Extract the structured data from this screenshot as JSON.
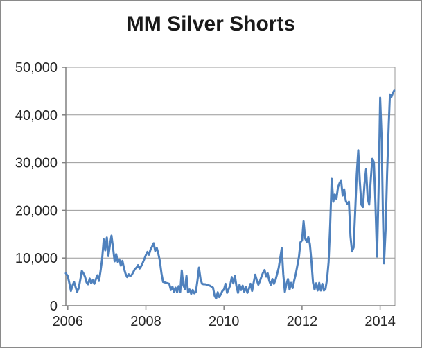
{
  "chart_data": {
    "type": "line",
    "title": "MM Silver Shorts",
    "xlabel": "",
    "ylabel": "",
    "xlim": [
      2005.95,
      2014.38
    ],
    "ylim": [
      0,
      50000
    ],
    "x_ticks": [
      2006,
      2008,
      2010,
      2012,
      2014
    ],
    "x_tick_labels": [
      "2006",
      "2008",
      "2010",
      "2012",
      "2014"
    ],
    "y_ticks": [
      0,
      10000,
      20000,
      30000,
      40000,
      50000
    ],
    "y_tick_labels": [
      "0",
      "10,000",
      "20,000",
      "30,000",
      "40,000",
      "50,000"
    ],
    "grid": "horizontal",
    "legend": "none",
    "colors": {
      "line": "#4F81BD",
      "gridline": "#999999",
      "axis": "#808080",
      "label": "#262626",
      "title": "#1a1a1a",
      "border": "#8a8a8a",
      "background": "#ffffff"
    },
    "series": [
      {
        "name": "MM Silver Shorts",
        "points": [
          [
            2005.95,
            6800
          ],
          [
            2006.0,
            6200
          ],
          [
            2006.04,
            4700
          ],
          [
            2006.08,
            3100
          ],
          [
            2006.12,
            4200
          ],
          [
            2006.16,
            5000
          ],
          [
            2006.2,
            3900
          ],
          [
            2006.24,
            2900
          ],
          [
            2006.28,
            3700
          ],
          [
            2006.32,
            5400
          ],
          [
            2006.36,
            7300
          ],
          [
            2006.4,
            6800
          ],
          [
            2006.44,
            6100
          ],
          [
            2006.48,
            4900
          ],
          [
            2006.52,
            4500
          ],
          [
            2006.56,
            5700
          ],
          [
            2006.6,
            4700
          ],
          [
            2006.64,
            5400
          ],
          [
            2006.68,
            4600
          ],
          [
            2006.72,
            5600
          ],
          [
            2006.76,
            6400
          ],
          [
            2006.8,
            5200
          ],
          [
            2006.84,
            7300
          ],
          [
            2006.88,
            9800
          ],
          [
            2006.92,
            13900
          ],
          [
            2006.96,
            11600
          ],
          [
            2007.0,
            14300
          ],
          [
            2007.04,
            10400
          ],
          [
            2007.08,
            12800
          ],
          [
            2007.12,
            14700
          ],
          [
            2007.16,
            12100
          ],
          [
            2007.2,
            9300
          ],
          [
            2007.24,
            10800
          ],
          [
            2007.28,
            9200
          ],
          [
            2007.32,
            9700
          ],
          [
            2007.36,
            8400
          ],
          [
            2007.4,
            9400
          ],
          [
            2007.44,
            7800
          ],
          [
            2007.48,
            6700
          ],
          [
            2007.52,
            6000
          ],
          [
            2007.56,
            6600
          ],
          [
            2007.6,
            6200
          ],
          [
            2007.64,
            6500
          ],
          [
            2007.68,
            7100
          ],
          [
            2007.72,
            7700
          ],
          [
            2007.76,
            8000
          ],
          [
            2007.8,
            8500
          ],
          [
            2007.84,
            7800
          ],
          [
            2007.88,
            8300
          ],
          [
            2007.92,
            9000
          ],
          [
            2007.96,
            9800
          ],
          [
            2008.0,
            10600
          ],
          [
            2008.04,
            11300
          ],
          [
            2008.08,
            10700
          ],
          [
            2008.12,
            11800
          ],
          [
            2008.16,
            12400
          ],
          [
            2008.2,
            13100
          ],
          [
            2008.24,
            11500
          ],
          [
            2008.28,
            12100
          ],
          [
            2008.32,
            10900
          ],
          [
            2008.36,
            9300
          ],
          [
            2008.4,
            6800
          ],
          [
            2008.44,
            5000
          ],
          [
            2008.48,
            4900
          ],
          [
            2008.52,
            4800
          ],
          [
            2008.56,
            4700
          ],
          [
            2008.6,
            4600
          ],
          [
            2008.64,
            3300
          ],
          [
            2008.68,
            4000
          ],
          [
            2008.72,
            2900
          ],
          [
            2008.76,
            3800
          ],
          [
            2008.8,
            2800
          ],
          [
            2008.84,
            4100
          ],
          [
            2008.88,
            2900
          ],
          [
            2008.92,
            7400
          ],
          [
            2008.96,
            4300
          ],
          [
            2009.0,
            3500
          ],
          [
            2009.04,
            6300
          ],
          [
            2009.08,
            2800
          ],
          [
            2009.12,
            3400
          ],
          [
            2009.16,
            2500
          ],
          [
            2009.2,
            3300
          ],
          [
            2009.24,
            2600
          ],
          [
            2009.28,
            2900
          ],
          [
            2009.32,
            5200
          ],
          [
            2009.36,
            8000
          ],
          [
            2009.4,
            5600
          ],
          [
            2009.44,
            4600
          ],
          [
            2009.48,
            4500
          ],
          [
            2009.52,
            4500
          ],
          [
            2009.56,
            4400
          ],
          [
            2009.6,
            4300
          ],
          [
            2009.64,
            4200
          ],
          [
            2009.68,
            4000
          ],
          [
            2009.72,
            3800
          ],
          [
            2009.76,
            2100
          ],
          [
            2009.8,
            1500
          ],
          [
            2009.84,
            2800
          ],
          [
            2009.88,
            1800
          ],
          [
            2009.92,
            2400
          ],
          [
            2009.96,
            3100
          ],
          [
            2010.0,
            3400
          ],
          [
            2010.04,
            4600
          ],
          [
            2010.08,
            2700
          ],
          [
            2010.12,
            3500
          ],
          [
            2010.16,
            4300
          ],
          [
            2010.2,
            6000
          ],
          [
            2010.24,
            4700
          ],
          [
            2010.28,
            6300
          ],
          [
            2010.32,
            4100
          ],
          [
            2010.36,
            2700
          ],
          [
            2010.4,
            4400
          ],
          [
            2010.44,
            3300
          ],
          [
            2010.48,
            4200
          ],
          [
            2010.52,
            2900
          ],
          [
            2010.56,
            3900
          ],
          [
            2010.6,
            2700
          ],
          [
            2010.64,
            3600
          ],
          [
            2010.68,
            4600
          ],
          [
            2010.72,
            3100
          ],
          [
            2010.76,
            4800
          ],
          [
            2010.8,
            6500
          ],
          [
            2010.84,
            5400
          ],
          [
            2010.88,
            4400
          ],
          [
            2010.92,
            5100
          ],
          [
            2010.96,
            6100
          ],
          [
            2011.0,
            6900
          ],
          [
            2011.04,
            7500
          ],
          [
            2011.08,
            6100
          ],
          [
            2011.12,
            6800
          ],
          [
            2011.16,
            5200
          ],
          [
            2011.2,
            4400
          ],
          [
            2011.24,
            5600
          ],
          [
            2011.28,
            4600
          ],
          [
            2011.32,
            5400
          ],
          [
            2011.36,
            6600
          ],
          [
            2011.4,
            7900
          ],
          [
            2011.44,
            9900
          ],
          [
            2011.48,
            12100
          ],
          [
            2011.52,
            6600
          ],
          [
            2011.56,
            2900
          ],
          [
            2011.6,
            4600
          ],
          [
            2011.64,
            5600
          ],
          [
            2011.68,
            3400
          ],
          [
            2011.72,
            4800
          ],
          [
            2011.76,
            3700
          ],
          [
            2011.8,
            5300
          ],
          [
            2011.84,
            6700
          ],
          [
            2011.88,
            8400
          ],
          [
            2011.92,
            10200
          ],
          [
            2011.96,
            13300
          ],
          [
            2012.0,
            13700
          ],
          [
            2012.04,
            17700
          ],
          [
            2012.08,
            14100
          ],
          [
            2012.12,
            13400
          ],
          [
            2012.16,
            14400
          ],
          [
            2012.2,
            12900
          ],
          [
            2012.24,
            9400
          ],
          [
            2012.28,
            4900
          ],
          [
            2012.32,
            3400
          ],
          [
            2012.36,
            4700
          ],
          [
            2012.4,
            3200
          ],
          [
            2012.44,
            4800
          ],
          [
            2012.48,
            3200
          ],
          [
            2012.52,
            4600
          ],
          [
            2012.56,
            3200
          ],
          [
            2012.6,
            3500
          ],
          [
            2012.64,
            5600
          ],
          [
            2012.68,
            9100
          ],
          [
            2012.72,
            17000
          ],
          [
            2012.76,
            26600
          ],
          [
            2012.8,
            21800
          ],
          [
            2012.84,
            23300
          ],
          [
            2012.88,
            22400
          ],
          [
            2012.92,
            24800
          ],
          [
            2012.96,
            25700
          ],
          [
            2013.0,
            26300
          ],
          [
            2013.04,
            23100
          ],
          [
            2013.08,
            24400
          ],
          [
            2013.12,
            22000
          ],
          [
            2013.16,
            21300
          ],
          [
            2013.2,
            21800
          ],
          [
            2013.24,
            14500
          ],
          [
            2013.28,
            11400
          ],
          [
            2013.32,
            12200
          ],
          [
            2013.36,
            19500
          ],
          [
            2013.4,
            27500
          ],
          [
            2013.44,
            32600
          ],
          [
            2013.48,
            26000
          ],
          [
            2013.52,
            21200
          ],
          [
            2013.56,
            20700
          ],
          [
            2013.6,
            25500
          ],
          [
            2013.64,
            28600
          ],
          [
            2013.68,
            22500
          ],
          [
            2013.72,
            21200
          ],
          [
            2013.76,
            26500
          ],
          [
            2013.8,
            30800
          ],
          [
            2013.84,
            30100
          ],
          [
            2013.88,
            21500
          ],
          [
            2013.92,
            10300
          ],
          [
            2013.96,
            24000
          ],
          [
            2014.0,
            43600
          ],
          [
            2014.04,
            35000
          ],
          [
            2014.07,
            20000
          ],
          [
            2014.1,
            8900
          ],
          [
            2014.14,
            16000
          ],
          [
            2014.18,
            28000
          ],
          [
            2014.22,
            38000
          ],
          [
            2014.25,
            44300
          ],
          [
            2014.29,
            43800
          ],
          [
            2014.33,
            44700
          ],
          [
            2014.36,
            45100
          ]
        ]
      }
    ]
  }
}
